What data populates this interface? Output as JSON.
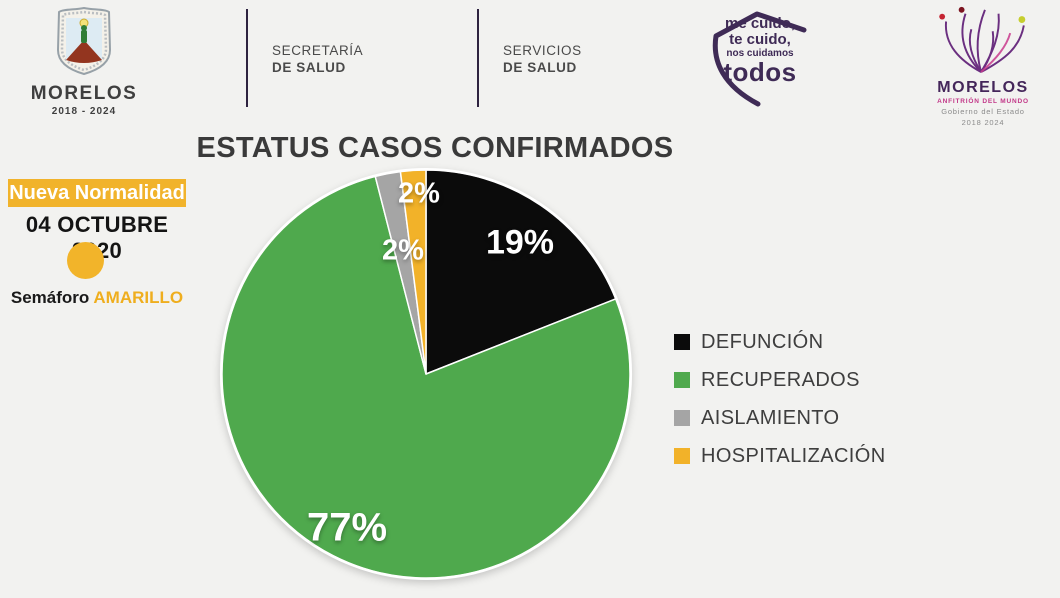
{
  "page": {
    "background": "#f2f2f0"
  },
  "header": {
    "state_seal": {
      "title": "MORELOS",
      "years": "2018 - 2024"
    },
    "secretaria_salud": {
      "line1": "SECRETARÍA",
      "line2": "DE SALUD"
    },
    "servicios_salud": {
      "line1": "SERVICIOS",
      "line2": "DE SALUD"
    },
    "care_badge": {
      "line1": "me cuido,",
      "line2": "te cuido,",
      "line3": "nos cuidamos",
      "line4": "todos"
    },
    "brand_logo": {
      "title": "MORELOS",
      "subtitle": "ANFITRIÓN DEL MUNDO",
      "gov_line1": "Gobierno del Estado",
      "gov_line2": "2018 2024"
    }
  },
  "status_panel": {
    "banner": "Nueva Normalidad",
    "banner_color": "#F1B32B",
    "date": "04 OCTUBRE 2020",
    "semaforo_label": "Semáforo",
    "semaforo_value": "AMARILLO",
    "semaforo_color": "#F2B42A"
  },
  "chart_data": {
    "type": "pie",
    "title": "ESTATUS CASOS CONFIRMADOS",
    "categories": [
      "DEFUNCIÓN",
      "RECUPERADOS",
      "AISLAMIENTO",
      "HOSPITALIZACIÓN"
    ],
    "values": [
      19,
      77,
      2,
      2
    ],
    "labels": [
      "19%",
      "77%",
      "2%",
      "2%"
    ],
    "colors": [
      "#0B0B0B",
      "#4FA94D",
      "#A5A5A5",
      "#F2B229"
    ],
    "start_angle_deg": 0,
    "direction": "clockwise",
    "legend_position": "right",
    "legend_text_color": "#3E3E3E"
  }
}
